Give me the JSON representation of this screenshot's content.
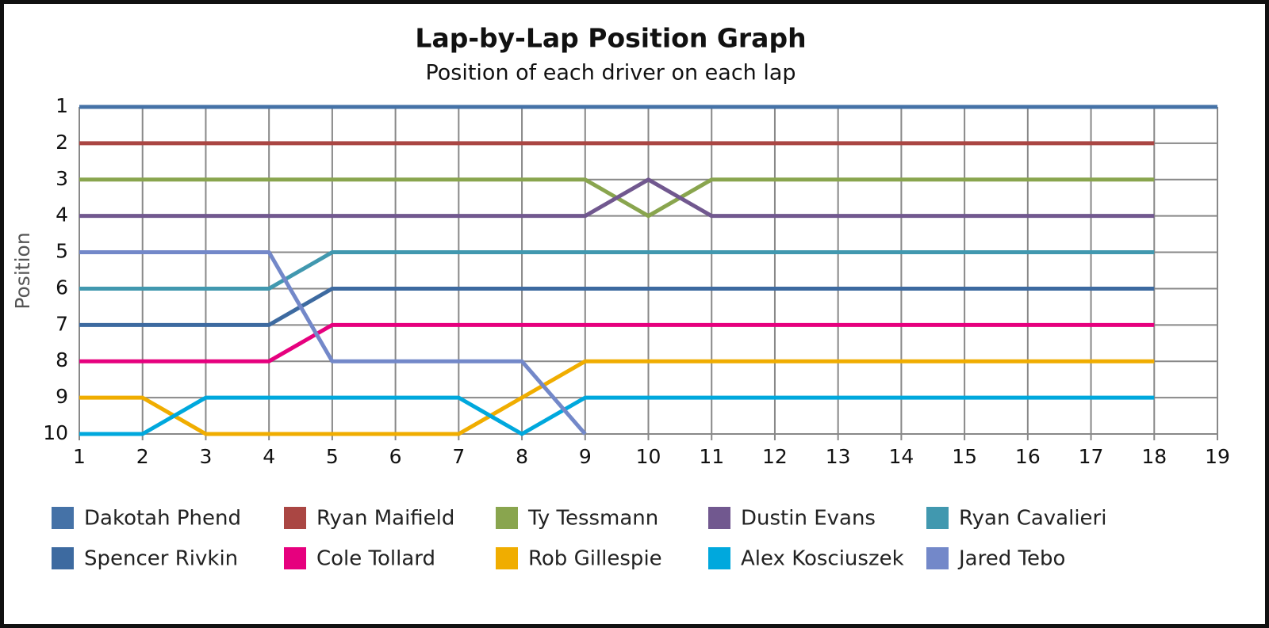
{
  "chart_data": {
    "type": "line",
    "title": "Lap-by-Lap Position Graph",
    "subtitle": "Position of each driver on each lap",
    "y_label": "Position",
    "x": [
      1,
      2,
      3,
      4,
      5,
      6,
      7,
      8,
      9,
      10,
      11,
      12,
      13,
      14,
      15,
      16,
      17,
      18,
      19
    ],
    "xlim": [
      1,
      19
    ],
    "xticks": [
      1,
      2,
      3,
      4,
      5,
      6,
      7,
      8,
      9,
      10,
      11,
      12,
      13,
      14,
      15,
      16,
      17,
      18,
      19
    ],
    "ylim": [
      1,
      10
    ],
    "yticks": [
      1,
      2,
      3,
      4,
      5,
      6,
      7,
      8,
      9,
      10
    ],
    "y_inverted": true,
    "grid": true,
    "legend": "bottom",
    "series": [
      {
        "name": "Dakotah Phend",
        "color": "#4572a7",
        "values": [
          1,
          1,
          1,
          1,
          1,
          1,
          1,
          1,
          1,
          1,
          1,
          1,
          1,
          1,
          1,
          1,
          1,
          1,
          1
        ]
      },
      {
        "name": "Ryan Maifield",
        "color": "#aa4643",
        "values": [
          2,
          2,
          2,
          2,
          2,
          2,
          2,
          2,
          2,
          2,
          2,
          2,
          2,
          2,
          2,
          2,
          2,
          2,
          null
        ]
      },
      {
        "name": "Ty Tessmann",
        "color": "#89a54e",
        "values": [
          3,
          3,
          3,
          3,
          3,
          3,
          3,
          3,
          3,
          4,
          3,
          3,
          3,
          3,
          3,
          3,
          3,
          3,
          null
        ]
      },
      {
        "name": "Dustin Evans",
        "color": "#71588f",
        "values": [
          4,
          4,
          4,
          4,
          4,
          4,
          4,
          4,
          4,
          3,
          4,
          4,
          4,
          4,
          4,
          4,
          4,
          4,
          null
        ]
      },
      {
        "name": "Ryan Cavalieri",
        "color": "#4198af",
        "values": [
          6,
          6,
          6,
          6,
          5,
          5,
          5,
          5,
          5,
          5,
          5,
          5,
          5,
          5,
          5,
          5,
          5,
          5,
          null
        ]
      },
      {
        "name": "Spencer Rivkin",
        "color": "#3d6aa0",
        "values": [
          7,
          7,
          7,
          7,
          6,
          6,
          6,
          6,
          6,
          6,
          6,
          6,
          6,
          6,
          6,
          6,
          6,
          6,
          null
        ]
      },
      {
        "name": "Cole Tollard",
        "color": "#e6007e",
        "values": [
          8,
          8,
          8,
          8,
          7,
          7,
          7,
          7,
          7,
          7,
          7,
          7,
          7,
          7,
          7,
          7,
          7,
          7,
          null
        ]
      },
      {
        "name": "Rob Gillespie",
        "color": "#f0ad00",
        "values": [
          9,
          9,
          10,
          10,
          10,
          10,
          10,
          9,
          8,
          8,
          8,
          8,
          8,
          8,
          8,
          8,
          8,
          8,
          null
        ]
      },
      {
        "name": "Alex Kosciuszek",
        "color": "#00a8dd",
        "values": [
          10,
          10,
          9,
          9,
          9,
          9,
          9,
          10,
          9,
          9,
          9,
          9,
          9,
          9,
          9,
          9,
          9,
          9,
          null
        ]
      },
      {
        "name": "Jared Tebo",
        "color": "#7388c9",
        "values": [
          5,
          5,
          5,
          5,
          8,
          8,
          8,
          8,
          10,
          null,
          null,
          null,
          null,
          null,
          null,
          null,
          null,
          null,
          null
        ]
      }
    ]
  }
}
